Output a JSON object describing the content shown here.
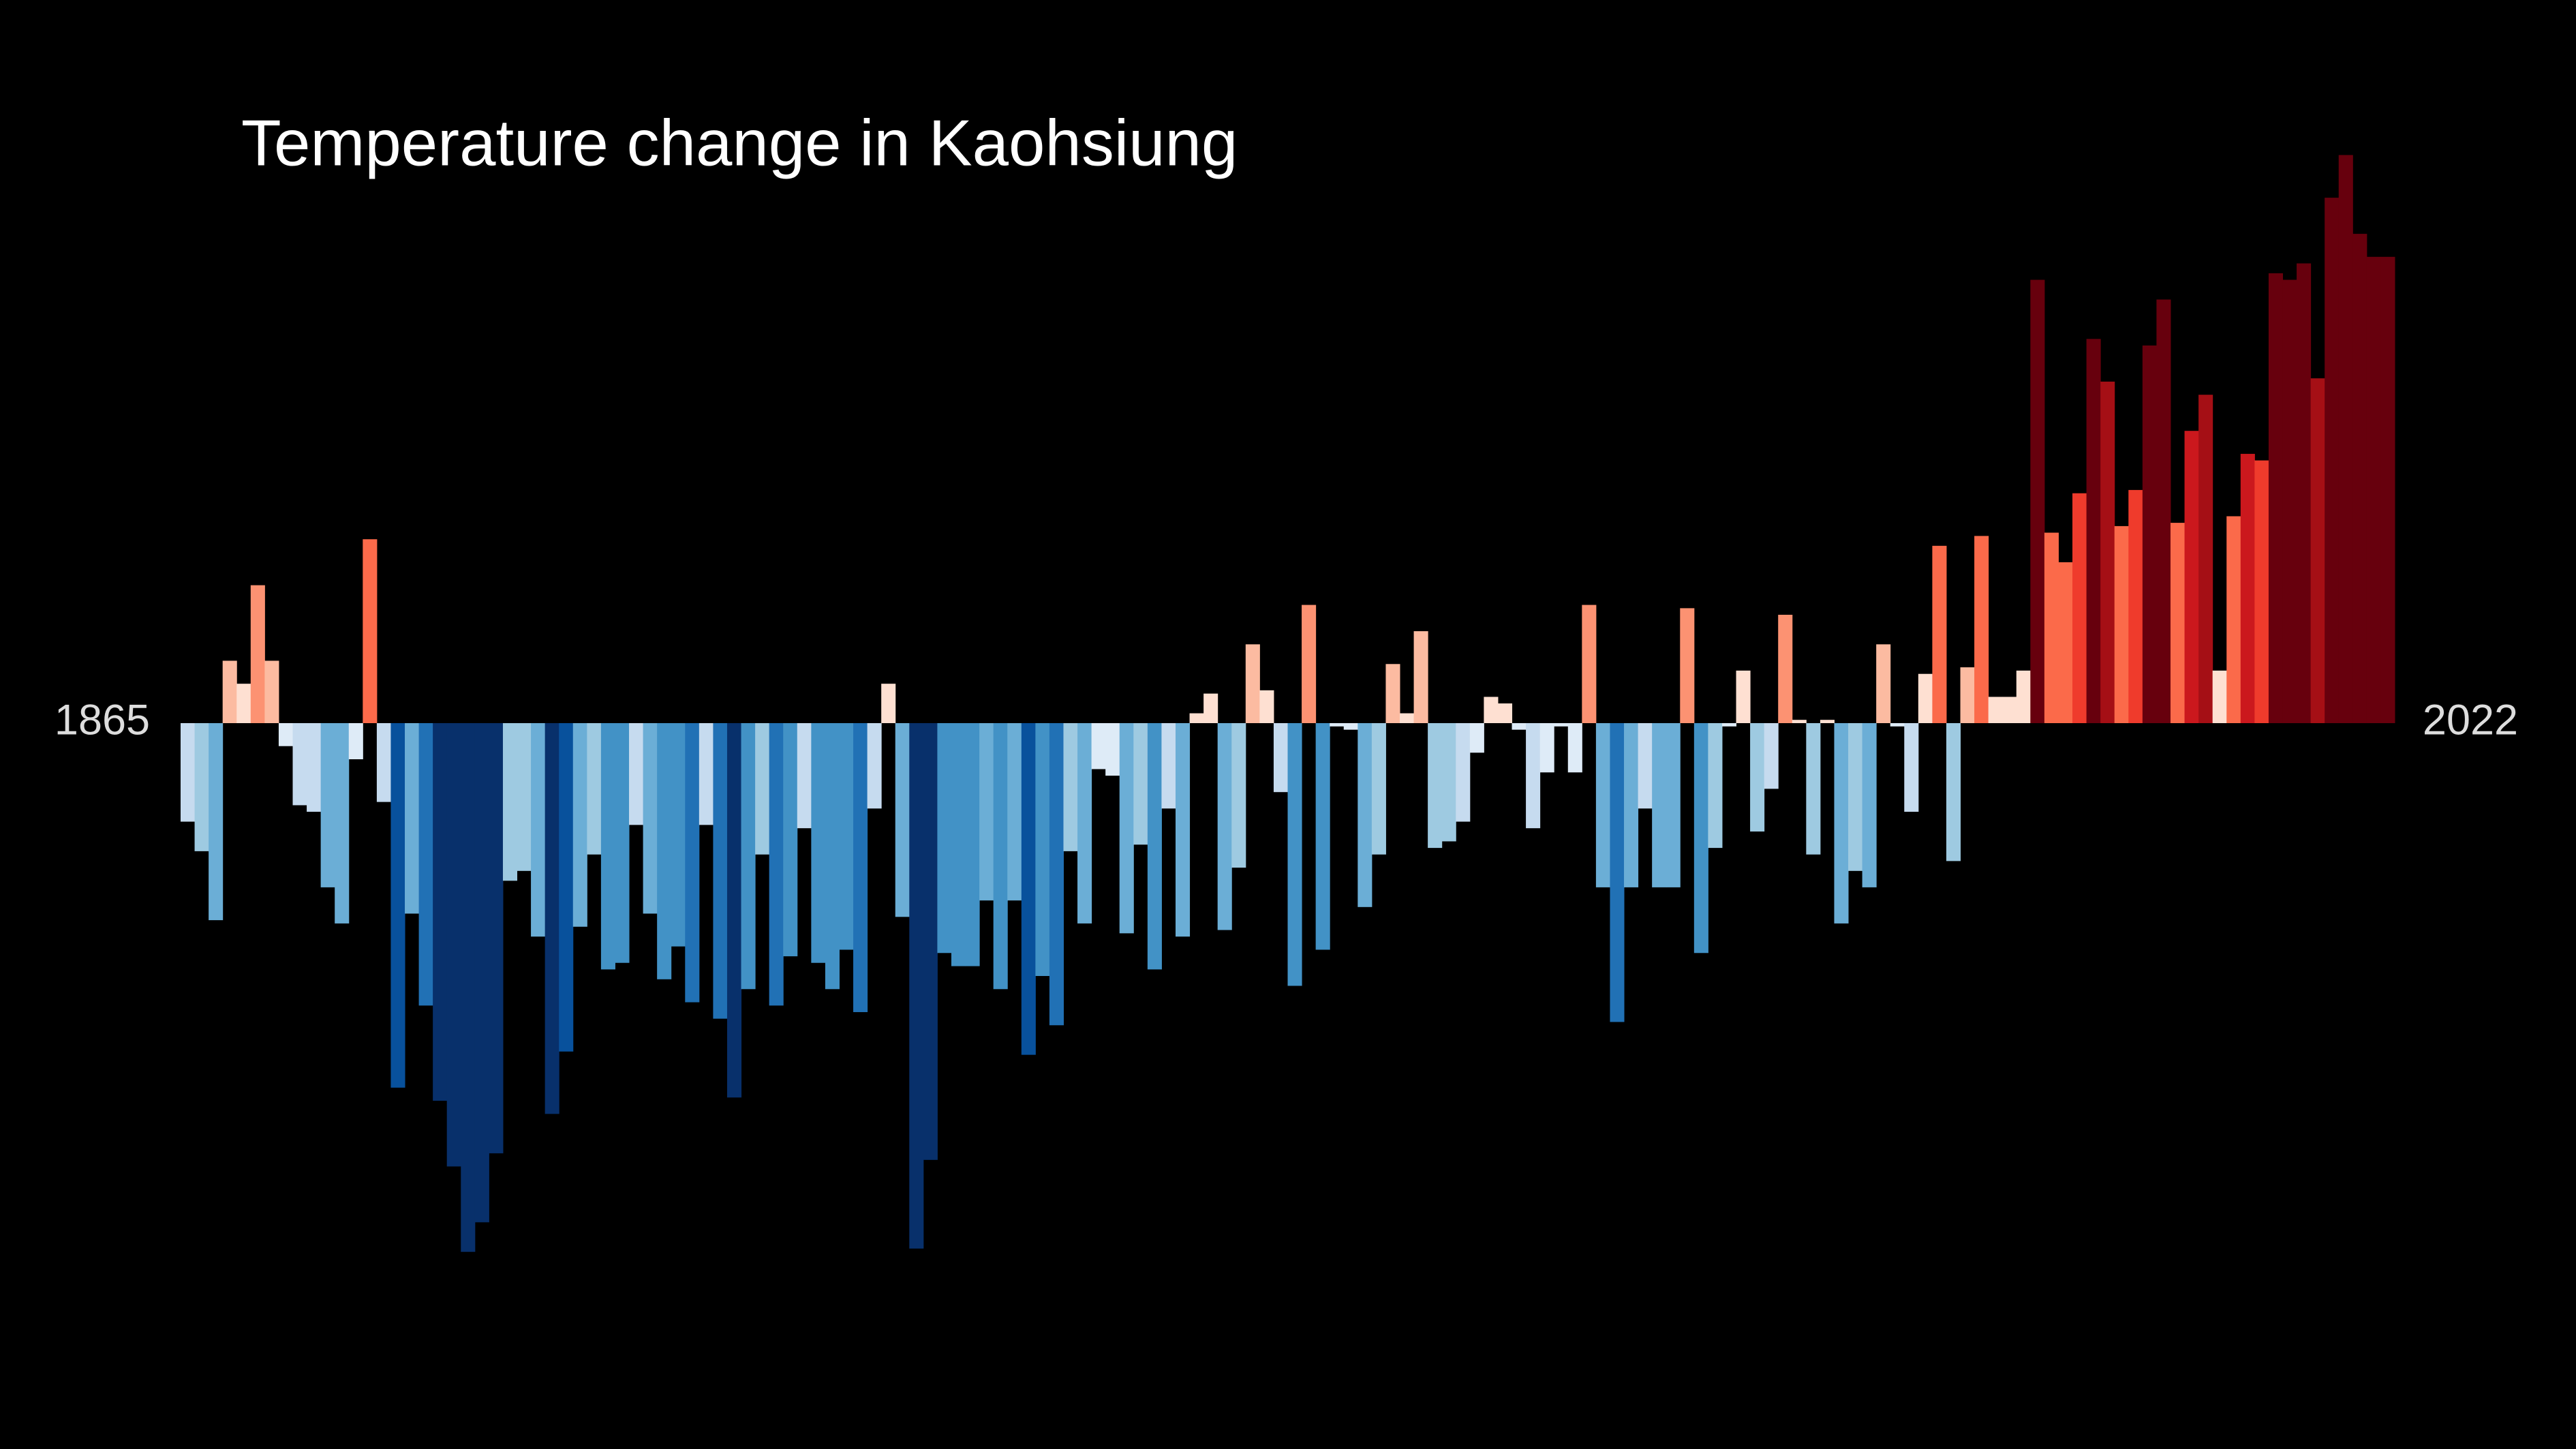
{
  "chart_data": {
    "type": "bar",
    "title": "Temperature change in Kaohsiung",
    "x": [
      1865,
      1866,
      1867,
      1868,
      1869,
      1870,
      1871,
      1872,
      1873,
      1874,
      1875,
      1876,
      1877,
      1878,
      1879,
      1880,
      1881,
      1882,
      1883,
      1884,
      1885,
      1886,
      1887,
      1888,
      1889,
      1890,
      1891,
      1892,
      1893,
      1894,
      1895,
      1896,
      1897,
      1898,
      1899,
      1900,
      1901,
      1902,
      1903,
      1904,
      1905,
      1906,
      1907,
      1908,
      1909,
      1910,
      1911,
      1912,
      1913,
      1914,
      1915,
      1916,
      1917,
      1918,
      1919,
      1920,
      1921,
      1922,
      1923,
      1924,
      1925,
      1926,
      1927,
      1928,
      1929,
      1930,
      1931,
      1932,
      1933,
      1934,
      1935,
      1936,
      1937,
      1938,
      1939,
      1940,
      1941,
      1942,
      1943,
      1944,
      1945,
      1946,
      1947,
      1948,
      1949,
      1950,
      1951,
      1952,
      1953,
      1954,
      1955,
      1956,
      1957,
      1958,
      1959,
      1960,
      1961,
      1962,
      1963,
      1964,
      1965,
      1966,
      1967,
      1968,
      1969,
      1970,
      1971,
      1972,
      1973,
      1974,
      1975,
      1976,
      1977,
      1978,
      1979,
      1980,
      1981,
      1982,
      1983,
      1984,
      1985,
      1986,
      1987,
      1988,
      1989,
      1990,
      1991,
      1992,
      1993,
      1994,
      1995,
      1996,
      1997,
      1998,
      1999,
      2000,
      2001,
      2002,
      2003,
      2004,
      2005,
      2006,
      2007,
      2008,
      2009,
      2010,
      2011,
      2012,
      2013,
      2014,
      2015,
      2016,
      2017,
      2018,
      2019,
      2020,
      2021,
      2022
    ],
    "values": [
      -0.3,
      -0.39,
      -0.6,
      0.19,
      0.12,
      0.42,
      0.19,
      -0.07,
      -0.25,
      -0.27,
      -0.5,
      -0.61,
      -0.11,
      0.56,
      -0.24,
      -1.11,
      -0.58,
      -0.86,
      -1.15,
      -1.35,
      -1.61,
      -1.52,
      -1.31,
      -0.48,
      -0.45,
      -0.65,
      -1.19,
      -1.0,
      -0.62,
      -0.4,
      -0.75,
      -0.73,
      -0.31,
      -0.58,
      -0.78,
      -0.68,
      -0.85,
      -0.31,
      -0.9,
      -1.14,
      -0.81,
      -0.4,
      -0.86,
      -0.71,
      -0.32,
      -0.73,
      -0.81,
      -0.69,
      -0.88,
      -0.26,
      0.12,
      -0.59,
      -1.6,
      -1.33,
      -0.7,
      -0.74,
      -0.74,
      -0.54,
      -0.81,
      -0.54,
      -1.01,
      -0.77,
      -0.92,
      -0.39,
      -0.61,
      -0.14,
      -0.16,
      -0.64,
      -0.37,
      -0.75,
      -0.26,
      -0.65,
      0.03,
      0.09,
      -0.63,
      -0.44,
      0.24,
      0.1,
      -0.21,
      -0.8,
      0.36,
      -0.69,
      -0.01,
      -0.02,
      -0.56,
      -0.4,
      0.18,
      0.03,
      0.28,
      -0.38,
      -0.36,
      -0.3,
      -0.09,
      0.08,
      0.06,
      -0.02,
      -0.32,
      -0.15,
      -0.01,
      -0.15,
      0.36,
      -0.5,
      -0.91,
      -0.5,
      -0.26,
      -0.5,
      -0.5,
      0.35,
      -0.7,
      -0.38,
      -0.01,
      0.16,
      -0.33,
      -0.2,
      0.33,
      0.01,
      -0.4,
      0.01,
      -0.61,
      -0.45,
      -0.5,
      0.24,
      -0.01,
      -0.27,
      0.15,
      0.54,
      -0.42,
      0.17,
      0.57,
      0.08,
      0.08,
      0.16,
      1.35,
      0.58,
      0.49,
      0.7,
      1.17,
      1.04,
      0.6,
      0.71,
      1.15,
      1.29,
      0.61,
      0.89,
      1.0,
      0.16,
      0.63,
      0.82,
      0.8,
      1.37,
      1.35,
      1.4,
      1.05,
      1.6,
      1.73,
      1.49,
      1.42,
      1.42
    ],
    "ylim": [
      -2.2,
      2.2
    ],
    "colormap": [
      "#08306b",
      "#08519c",
      "#2171b5",
      "#4292c6",
      "#6baed6",
      "#9ecae1",
      "#c6dbef",
      "#deebf7",
      "#fee0d2",
      "#fcbba1",
      "#fc9272",
      "#fb6a4a",
      "#ef3b2c",
      "#cb181d",
      "#a50f15",
      "#67000d"
    ],
    "color_limits": [
      -1.3,
      1.3
    ]
  }
}
